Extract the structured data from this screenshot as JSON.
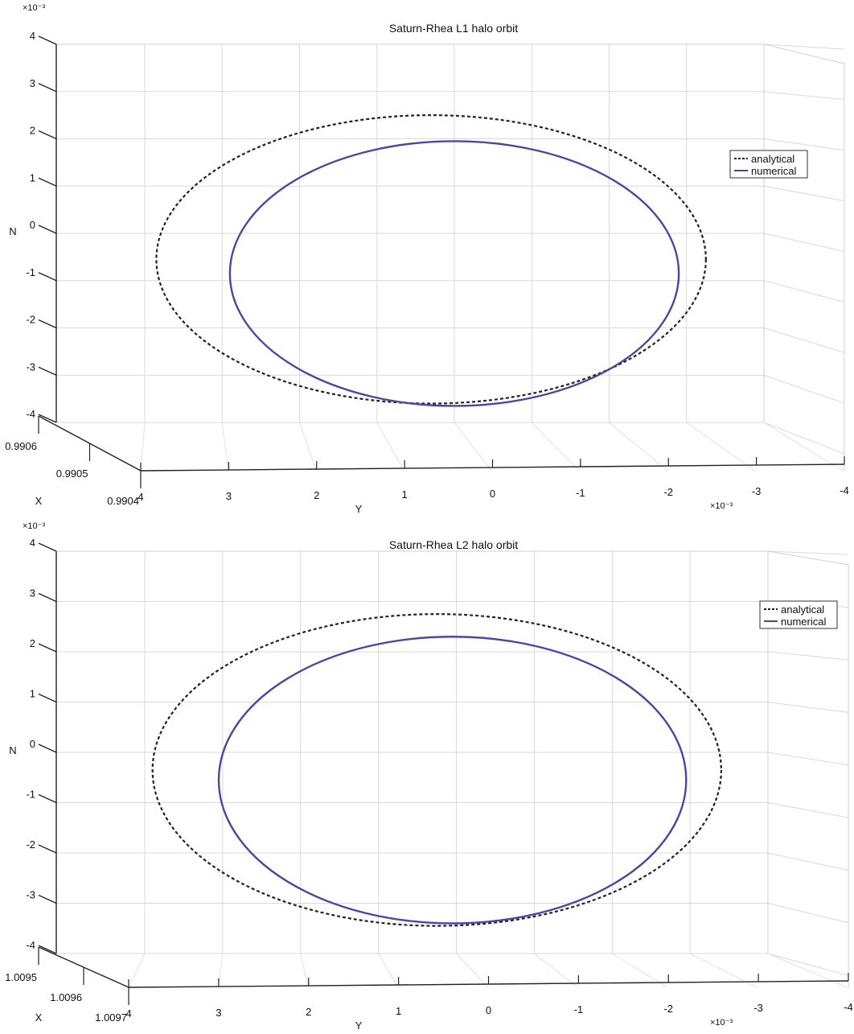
{
  "chart_data": [
    {
      "type": "line",
      "title": "Saturn-Rhea L1 halo orbit",
      "xlabel": "Y",
      "ylabel": "N",
      "zlabel": "X",
      "y_axis_ticks": [
        "4",
        "3",
        "2",
        "1",
        "0",
        "-1",
        "-2",
        "-3",
        "-4"
      ],
      "n_axis_ticks": [
        "4",
        "3",
        "2",
        "1",
        "0",
        "-1",
        "-2",
        "-3",
        "-4"
      ],
      "x_axis_ticks": [
        "0.9906",
        "0.9905",
        "0.9904"
      ],
      "y_exponent": "×10⁻³",
      "n_exponent": "×10⁻³",
      "ylim": [
        4,
        -4
      ],
      "nlim": [
        -4,
        4
      ],
      "legend": "top-right",
      "grid": true,
      "series": [
        {
          "name": "analytical",
          "style": "dashed",
          "color": "#222222",
          "center_y": 0.3,
          "center_n": -0.55,
          "semi_axis_y": 3.55,
          "semi_axis_n": 3.05
        },
        {
          "name": "numerical",
          "style": "solid",
          "color": "#4a47a3",
          "center_y": 0.0,
          "center_n": -0.85,
          "semi_axis_y": 2.9,
          "semi_axis_n": 2.8
        }
      ]
    },
    {
      "type": "line",
      "title": "Saturn-Rhea L2 halo orbit",
      "xlabel": "Y",
      "ylabel": "N",
      "zlabel": "X",
      "y_axis_ticks": [
        "4",
        "3",
        "2",
        "1",
        "0",
        "-1",
        "-2",
        "-3",
        "-4"
      ],
      "n_axis_ticks": [
        "4",
        "3",
        "2",
        "1",
        "0",
        "-1",
        "-2",
        "-3",
        "-4"
      ],
      "x_axis_ticks": [
        "1.0095",
        "1.0096",
        "1.0097"
      ],
      "y_exponent": "×10⁻³",
      "n_exponent": "×10⁻³",
      "ylim": [
        4,
        -4
      ],
      "nlim": [
        -4,
        4
      ],
      "legend": "top-right",
      "grid": true,
      "series": [
        {
          "name": "analytical",
          "style": "dashed",
          "color": "#222222",
          "center_y": 0.25,
          "center_n": -0.35,
          "semi_axis_y": 3.65,
          "semi_axis_n": 3.1
        },
        {
          "name": "numerical",
          "style": "solid",
          "color": "#4a47a3",
          "center_y": 0.05,
          "center_n": -0.55,
          "semi_axis_y": 3.0,
          "semi_axis_n": 2.85
        }
      ]
    }
  ]
}
